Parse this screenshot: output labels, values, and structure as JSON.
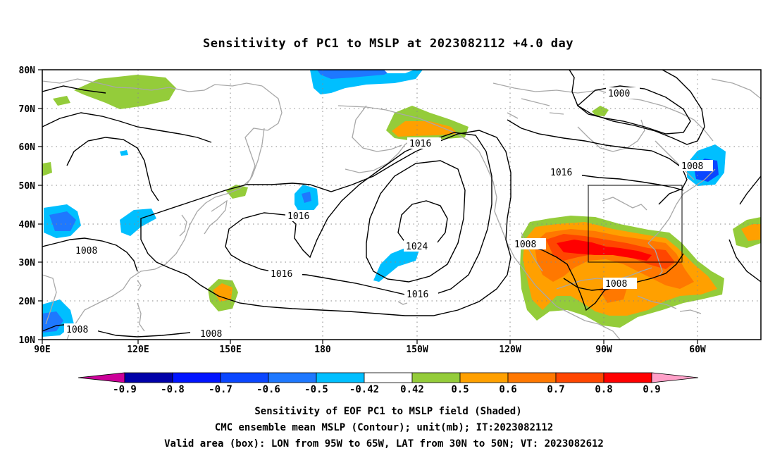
{
  "title": "Sensitivity of PC1 to MSLP at 2023082112 +4.0 day",
  "lat_ticks": [
    "80N",
    "70N",
    "60N",
    "50N",
    "40N",
    "30N",
    "20N",
    "10N"
  ],
  "lon_ticks": [
    "90E",
    "120E",
    "150E",
    "180",
    "150W",
    "120W",
    "90W",
    "60W"
  ],
  "contour_labels": {
    "c1000": "1000",
    "c1008_ne": "1008",
    "c1016_ak": "1016",
    "c1016_can": "1016",
    "c1016_pac": "1016",
    "c1024": "1024",
    "c1016_w": "1016",
    "c1016_s": "1016",
    "c1008_mex": "1008",
    "c1008_gulf": "1008",
    "c1008_asia": "1008",
    "c1008_sea": "1008",
    "c1008_s": "1008"
  },
  "colorbar": {
    "labels": [
      "-0.9",
      "-0.8",
      "-0.7",
      "-0.6",
      "-0.5",
      "-0.42",
      "0.42",
      "0.5",
      "0.6",
      "0.7",
      "0.8",
      "0.9"
    ],
    "colors": [
      "#0000a8",
      "#0014ff",
      "#0a46ff",
      "#1e78ff",
      "#00bfff",
      "#ffffff",
      "#94cc3a",
      "#ffa000",
      "#ff7800",
      "#ff4600",
      "#ff0000"
    ],
    "low_color": "#cc0099",
    "high_color": "#ffa0c8"
  },
  "captions": {
    "line1": "Sensitivity of EOF PC1 to MSLP field (Shaded)",
    "line2": "CMC ensemble mean MSLP (Contour); unit(mb); IT:2023082112",
    "line3": "Valid area (box): LON from 95W to 65W, LAT from 30N to 50N; VT: 2023082612"
  }
}
